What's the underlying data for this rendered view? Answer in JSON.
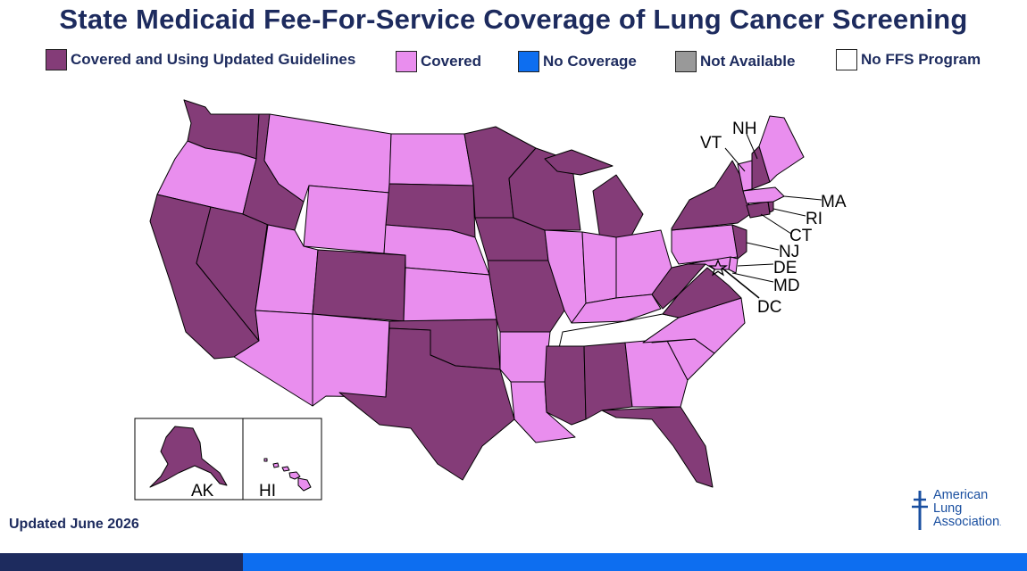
{
  "title": "State Medicaid Fee-For-Service Coverage of Lung Cancer Screening",
  "legend": [
    {
      "label": "Covered and Using Updated Guidelines",
      "color": "#843c78"
    },
    {
      "label": "Covered",
      "color": "#e98eee"
    },
    {
      "label": "No Coverage",
      "color": "#0d6ef0"
    },
    {
      "label": "Not Available",
      "color": "#999999"
    },
    {
      "label": "No FFS Program",
      "color": "#ffffff"
    }
  ],
  "colors": {
    "updated": "#843c78",
    "covered": "#e98eee",
    "no_coverage": "#0d6ef0",
    "not_available": "#999999",
    "no_ffs": "#ffffff"
  },
  "map_labels": {
    "VT": "VT",
    "NH": "NH",
    "MA": "MA",
    "RI": "RI",
    "CT": "CT",
    "NJ": "NJ",
    "DE": "DE",
    "MD": "MD",
    "DC": "DC",
    "AK": "AK",
    "HI": "HI"
  },
  "states": {
    "WA": "updated",
    "OR": "covered",
    "CA": "updated",
    "NV": "updated",
    "ID": "updated",
    "MT": "covered",
    "WY": "covered",
    "UT": "covered",
    "AZ": "covered",
    "CO": "updated",
    "NM": "covered",
    "ND": "covered",
    "SD": "updated",
    "NE": "covered",
    "KS": "covered",
    "OK": "updated",
    "TX": "updated",
    "MN": "updated",
    "IA": "updated",
    "MO": "updated",
    "AR": "covered",
    "LA": "covered",
    "WI": "updated",
    "IL": "covered",
    "MI": "updated",
    "IN": "covered",
    "OH": "covered",
    "KY": "covered",
    "TN": "no_ffs",
    "MS": "updated",
    "AL": "updated",
    "GA": "covered",
    "FL": "updated",
    "SC": "covered",
    "NC": "covered",
    "VA": "updated",
    "WV": "updated",
    "PA": "covered",
    "NY": "updated",
    "VT": "covered",
    "NH": "updated",
    "ME": "covered",
    "MA": "covered",
    "RI": "updated",
    "CT": "updated",
    "NJ": "updated",
    "DE": "covered",
    "MD": "covered",
    "DC": "updated",
    "AK": "updated",
    "HI": "covered"
  },
  "footer": {
    "updated": "Updated June 2026",
    "logo_line1": "American",
    "logo_line2": "Lung",
    "logo_line3": "Association",
    "logo_mark": "."
  }
}
